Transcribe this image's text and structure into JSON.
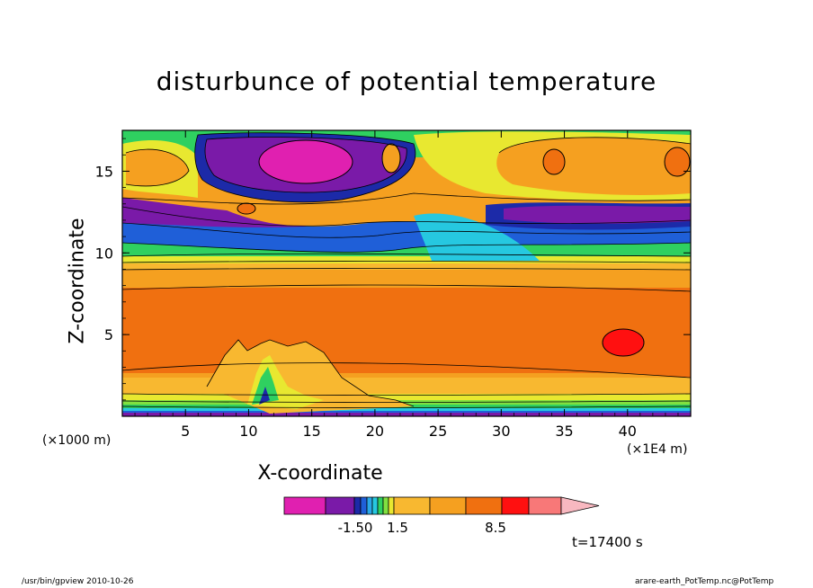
{
  "chart_data": {
    "type": "heatmap",
    "title": "disturbunce of potential temperature",
    "xlabel": "X-coordinate",
    "ylabel": "Z-coordinate",
    "x_unit_left": "(×1000 m)",
    "x_unit_right": "(×1E4 m)",
    "xlim": [
      0,
      45
    ],
    "ylim": [
      0,
      17.5
    ],
    "x_ticks": [
      "5",
      "10",
      "15",
      "20",
      "25",
      "30",
      "35",
      "40"
    ],
    "y_ticks": [
      "5",
      "10",
      "15"
    ],
    "colorbar": {
      "colors": [
        "#e020b0",
        "#7a1aa8",
        "#1c2aa8",
        "#1f5fd8",
        "#2aa8e8",
        "#26c8e0",
        "#2fd060",
        "#80e040",
        "#e8e830",
        "#f8b830",
        "#f5a020",
        "#f07010",
        "#ff1010",
        "#f87878",
        "#f8b8c0"
      ],
      "labels": [
        "-1.50",
        "1.5",
        "8.5"
      ]
    },
    "time_label": "t=17400 s",
    "footer_left": "/usr/bin/gpview  2010-10-26",
    "footer_right": "arare-earth_PotTemp.nc@PotTemp"
  }
}
